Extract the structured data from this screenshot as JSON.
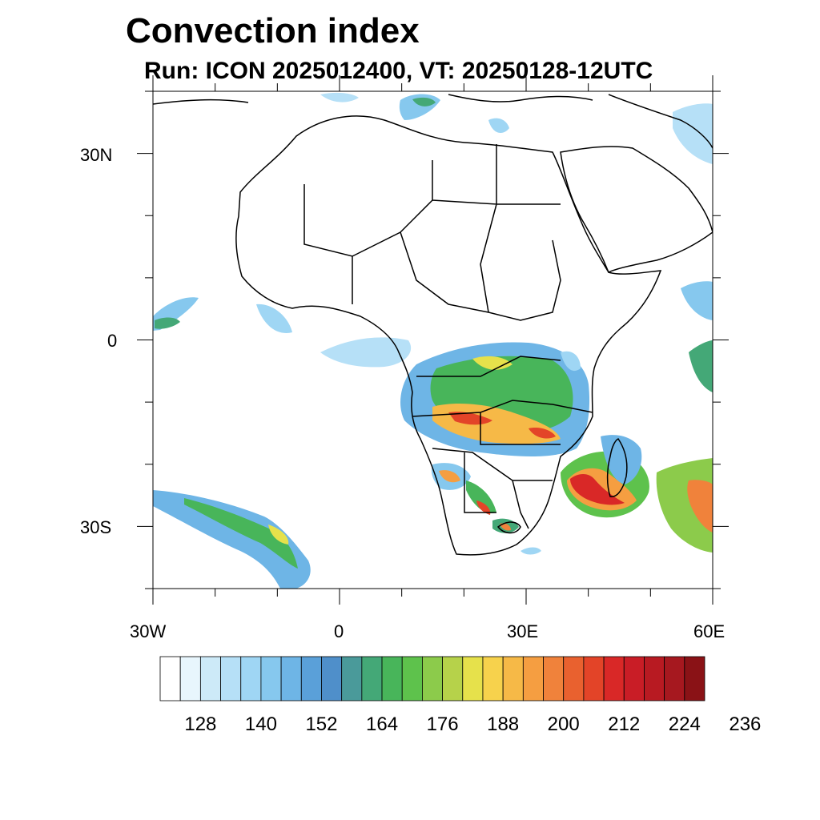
{
  "title": "Convection index",
  "subtitle": "Run: ICON 2025012400,  VT: 20250128-12UTC",
  "lat_axis": {
    "ticks": [
      {
        "value": 30,
        "label": "30N"
      },
      {
        "value": 0,
        "label": "0"
      },
      {
        "value": -30,
        "label": "30S"
      }
    ],
    "range": [
      -40,
      40
    ]
  },
  "lon_axis": {
    "ticks": [
      {
        "value": -30,
        "label": "30W"
      },
      {
        "value": 0,
        "label": "0"
      },
      {
        "value": 30,
        "label": "30E"
      },
      {
        "value": 60,
        "label": "60E"
      }
    ],
    "range": [
      -30,
      60
    ]
  },
  "colorbar": {
    "colors": [
      "#ffffff",
      "#e8f6fd",
      "#cdeaf8",
      "#b6e0f7",
      "#9fd6f4",
      "#86c8ee",
      "#6eb5e6",
      "#5aa0d9",
      "#4f8fca",
      "#4a9a9a",
      "#44a877",
      "#48b55a",
      "#5ec24c",
      "#8ccb4b",
      "#b6d24a",
      "#e6e14b",
      "#f7d24c",
      "#f6b947",
      "#f59e41",
      "#f0823b",
      "#e9612f",
      "#e34428",
      "#d92827",
      "#c91d26",
      "#b81a22",
      "#a6181f",
      "#8a1216"
    ],
    "labels": [
      "128",
      "140",
      "152",
      "164",
      "176",
      "188",
      "200",
      "212",
      "224",
      "236"
    ]
  }
}
